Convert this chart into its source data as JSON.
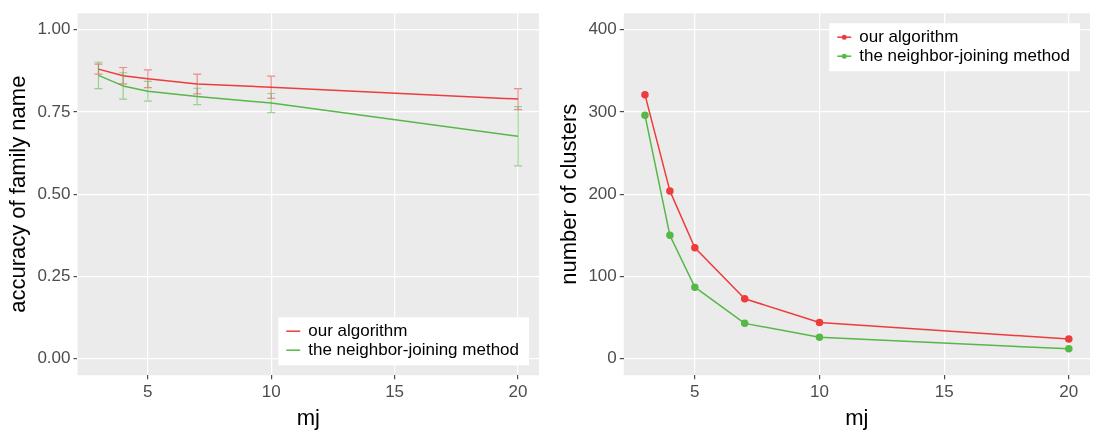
{
  "chart_data": [
    {
      "type": "line",
      "xlabel": "mj",
      "ylabel": "accuracy of family name",
      "x": [
        3,
        4,
        5,
        7,
        10,
        20
      ],
      "xlim": [
        2.15,
        20.85
      ],
      "xticks": [
        5,
        10,
        15,
        20
      ],
      "ylim": [
        -0.05,
        1.05
      ],
      "yticks": [
        {
          "value": 0,
          "label": "0.00"
        },
        {
          "value": 0.25,
          "label": "0.25"
        },
        {
          "value": 0.5,
          "label": "0.50"
        },
        {
          "value": 0.75,
          "label": "0.75"
        },
        {
          "value": 1,
          "label": "1.00"
        }
      ],
      "grid": true,
      "legend": "bottom right",
      "marker": "none",
      "series": [
        {
          "name": "our algorithm",
          "color": "#ee3b3b",
          "values": [
            0.88,
            0.86,
            0.851,
            0.835,
            0.825,
            0.789
          ],
          "errors": [
            0.015,
            0.025,
            0.027,
            0.03,
            0.034,
            0.032
          ]
        },
        {
          "name": "the neighbor-joining method",
          "color": "#55b847",
          "values": [
            0.861,
            0.829,
            0.813,
            0.797,
            0.777,
            0.676
          ],
          "errors": [
            0.04,
            0.04,
            0.03,
            0.025,
            0.029,
            0.09
          ]
        }
      ]
    },
    {
      "type": "line",
      "xlabel": "mj",
      "ylabel": "number of clusters",
      "x": [
        3,
        4,
        5,
        7,
        10,
        20
      ],
      "xlim": [
        2.15,
        20.85
      ],
      "xticks": [
        5,
        10,
        15,
        20
      ],
      "ylim": [
        -20,
        420
      ],
      "yticks": [
        0,
        100,
        200,
        300,
        400
      ],
      "grid": true,
      "legend": "top right",
      "marker": "circle",
      "series": [
        {
          "name": "our algorithm",
          "color": "#ee3b3b",
          "values": [
            321,
            204,
            135,
            73,
            44,
            24
          ]
        },
        {
          "name": "the neighbor-joining method",
          "color": "#55b847",
          "values": [
            296,
            150,
            87,
            43,
            26,
            12
          ]
        }
      ]
    }
  ]
}
